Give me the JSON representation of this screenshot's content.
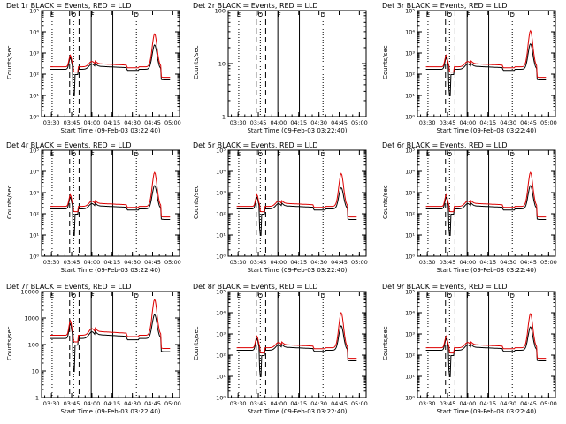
{
  "colors": {
    "events": "#000000",
    "lld": "#dd0000"
  },
  "shared": {
    "xlabel": "Start Time (09-Feb-03 03:22:40)",
    "ylabel": "Counts/sec",
    "x_ticks": [
      "03:30",
      "03:45",
      "04:00",
      "04:15",
      "04:30",
      "04:45",
      "05:00"
    ],
    "x_tick_minutes": [
      30,
      45,
      60,
      75,
      90,
      105,
      120
    ],
    "x_range_minutes": [
      22.67,
      125
    ],
    "exponent_ticks": [
      "10⁰",
      "10¹",
      "10²",
      "10³",
      "10⁴",
      "10⁵"
    ],
    "integer_ticks": [
      "1",
      "10",
      "100",
      "1000",
      "10000"
    ],
    "markers": [
      {
        "label": "E",
        "t": 30.5
      },
      {
        "label": "O",
        "t": 46.5
      },
      {
        "label": "F",
        "t": 60.5
      },
      {
        "label": "D",
        "t": 93.0
      }
    ],
    "dotted_lines": [
      30.5,
      46.5,
      93.0
    ],
    "dashed_lines": [
      43.5,
      50.5
    ],
    "solid_lines": [
      59.5,
      75.5
    ]
  },
  "chart_data": [
    {
      "type": "line",
      "title": "Det 1r BLACK = Events, RED = LLD",
      "ylim_log10": [
        0,
        5
      ],
      "tick_style": "exp",
      "events_scale": 1.0,
      "lld_scale": 1.0,
      "peak_events_log": 3.55,
      "peak_lld_log": 3.95
    },
    {
      "type": "line",
      "title": "Det 2r BLACK = Events, RED = LLD",
      "ylim_log10": [
        0,
        2
      ],
      "tick_style": "int",
      "events_scale": 0,
      "lld_scale": 0,
      "peak_events_log": 0,
      "peak_lld_log": 0
    },
    {
      "type": "line",
      "title": "Det 3r BLACK = Events, RED = LLD",
      "ylim_log10": [
        0,
        5
      ],
      "tick_style": "exp",
      "events_scale": 1.0,
      "lld_scale": 1.0,
      "peak_events_log": 3.6,
      "peak_lld_log": 4.1
    },
    {
      "type": "line",
      "title": "Det 4r BLACK = Events, RED = LLD",
      "ylim_log10": [
        0,
        5
      ],
      "tick_style": "exp",
      "events_scale": 1.0,
      "lld_scale": 1.0,
      "peak_events_log": 3.5,
      "peak_lld_log": 4.0
    },
    {
      "type": "line",
      "title": "Det 5r BLACK = Events, RED = LLD",
      "ylim_log10": [
        0,
        5
      ],
      "tick_style": "exp",
      "events_scale": 1.0,
      "lld_scale": 1.0,
      "peak_events_log": 3.4,
      "peak_lld_log": 3.95
    },
    {
      "type": "line",
      "title": "Det 6r BLACK = Events, RED = LLD",
      "ylim_log10": [
        0,
        5
      ],
      "tick_style": "exp",
      "events_scale": 1.0,
      "lld_scale": 1.0,
      "peak_events_log": 3.5,
      "peak_lld_log": 4.0
    },
    {
      "type": "line",
      "title": "Det 7r BLACK = Events, RED = LLD",
      "ylim_log10": [
        0,
        4
      ],
      "tick_style": "int",
      "events_scale": 1.0,
      "lld_scale": 1.0,
      "peak_events_log": 3.3,
      "peak_lld_log": 3.75
    },
    {
      "type": "line",
      "title": "Det 8r BLACK = Events, RED = LLD",
      "ylim_log10": [
        0,
        5
      ],
      "tick_style": "exp",
      "events_scale": 1.0,
      "lld_scale": 1.0,
      "peak_events_log": 3.55,
      "peak_lld_log": 4.05
    },
    {
      "type": "line",
      "title": "Det 9r BLACK = Events, RED = LLD",
      "ylim_log10": [
        0,
        5
      ],
      "tick_style": "exp",
      "events_scale": 1.0,
      "lld_scale": 1.0,
      "peak_events_log": 3.5,
      "peak_lld_log": 4.0
    }
  ]
}
